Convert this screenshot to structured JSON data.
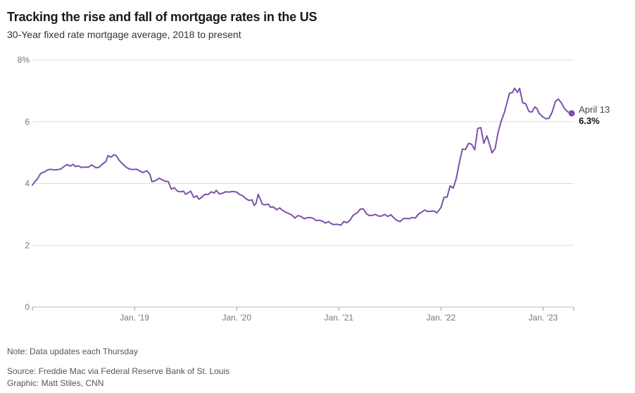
{
  "header": {
    "title": "Tracking the rise and fall of mortgage rates in the US",
    "subtitle": "30-Year fixed rate mortgage average, 2018 to present"
  },
  "footer": {
    "note": "Note: Data updates each Thursday",
    "source": "Source: Freddie Mac via Federal Reserve Bank of St. Louis",
    "credit": "Graphic: Matt Stiles, CNN"
  },
  "chart_data": {
    "type": "line",
    "title": "Tracking the rise and fall of mortgage rates in the US",
    "subtitle": "30-Year fixed rate mortgage average, 2018 to present",
    "xlabel": "",
    "ylabel": "",
    "ylim": [
      0,
      8
    ],
    "xlim": [
      2018.0,
      2023.3
    ],
    "yticks": [
      {
        "value": 0,
        "label": "0"
      },
      {
        "value": 2,
        "label": "2"
      },
      {
        "value": 4,
        "label": "4"
      },
      {
        "value": 6,
        "label": "6"
      },
      {
        "value": 8,
        "label": "8%"
      }
    ],
    "xticks": [
      {
        "value": 2019.0,
        "label": "Jan. '19"
      },
      {
        "value": 2020.0,
        "label": "Jan. '20"
      },
      {
        "value": 2021.0,
        "label": "Jan. '21"
      },
      {
        "value": 2022.0,
        "label": "Jan. '22"
      },
      {
        "value": 2023.0,
        "label": "Jan. '23"
      }
    ],
    "grid": true,
    "line_color": "#7b52ab",
    "end_annotation": {
      "date_label": "April 13",
      "value_label": "6.3%",
      "x": 2023.28,
      "y": 6.27
    },
    "series": [
      {
        "name": "30-Year fixed rate mortgage average",
        "points": [
          [
            2018.0,
            3.95
          ],
          [
            2018.02,
            4.04
          ],
          [
            2018.05,
            4.15
          ],
          [
            2018.08,
            4.32
          ],
          [
            2018.12,
            4.38
          ],
          [
            2018.15,
            4.44
          ],
          [
            2018.18,
            4.46
          ],
          [
            2018.21,
            4.44
          ],
          [
            2018.25,
            4.45
          ],
          [
            2018.28,
            4.47
          ],
          [
            2018.31,
            4.55
          ],
          [
            2018.34,
            4.61
          ],
          [
            2018.37,
            4.56
          ],
          [
            2018.4,
            4.62
          ],
          [
            2018.42,
            4.55
          ],
          [
            2018.45,
            4.57
          ],
          [
            2018.48,
            4.52
          ],
          [
            2018.52,
            4.53
          ],
          [
            2018.55,
            4.53
          ],
          [
            2018.58,
            4.6
          ],
          [
            2018.62,
            4.51
          ],
          [
            2018.65,
            4.52
          ],
          [
            2018.68,
            4.61
          ],
          [
            2018.72,
            4.71
          ],
          [
            2018.74,
            4.9
          ],
          [
            2018.77,
            4.85
          ],
          [
            2018.8,
            4.93
          ],
          [
            2018.82,
            4.9
          ],
          [
            2018.85,
            4.75
          ],
          [
            2018.88,
            4.64
          ],
          [
            2018.91,
            4.55
          ],
          [
            2018.94,
            4.48
          ],
          [
            2018.98,
            4.45
          ],
          [
            2019.02,
            4.46
          ],
          [
            2019.05,
            4.41
          ],
          [
            2019.08,
            4.35
          ],
          [
            2019.12,
            4.41
          ],
          [
            2019.15,
            4.3
          ],
          [
            2019.17,
            4.06
          ],
          [
            2019.2,
            4.08
          ],
          [
            2019.24,
            4.17
          ],
          [
            2019.27,
            4.12
          ],
          [
            2019.3,
            4.07
          ],
          [
            2019.33,
            4.06
          ],
          [
            2019.36,
            3.82
          ],
          [
            2019.39,
            3.86
          ],
          [
            2019.42,
            3.75
          ],
          [
            2019.45,
            3.73
          ],
          [
            2019.48,
            3.75
          ],
          [
            2019.5,
            3.65
          ],
          [
            2019.52,
            3.69
          ],
          [
            2019.55,
            3.75
          ],
          [
            2019.58,
            3.55
          ],
          [
            2019.61,
            3.6
          ],
          [
            2019.63,
            3.49
          ],
          [
            2019.66,
            3.56
          ],
          [
            2019.69,
            3.65
          ],
          [
            2019.72,
            3.64
          ],
          [
            2019.75,
            3.73
          ],
          [
            2019.78,
            3.69
          ],
          [
            2019.8,
            3.78
          ],
          [
            2019.83,
            3.66
          ],
          [
            2019.86,
            3.68
          ],
          [
            2019.89,
            3.73
          ],
          [
            2019.92,
            3.72
          ],
          [
            2019.96,
            3.74
          ],
          [
            2020.0,
            3.72
          ],
          [
            2020.03,
            3.64
          ],
          [
            2020.06,
            3.6
          ],
          [
            2020.09,
            3.51
          ],
          [
            2020.12,
            3.45
          ],
          [
            2020.15,
            3.47
          ],
          [
            2020.17,
            3.29
          ],
          [
            2020.19,
            3.36
          ],
          [
            2020.21,
            3.65
          ],
          [
            2020.23,
            3.5
          ],
          [
            2020.25,
            3.33
          ],
          [
            2020.28,
            3.31
          ],
          [
            2020.31,
            3.33
          ],
          [
            2020.33,
            3.23
          ],
          [
            2020.36,
            3.24
          ],
          [
            2020.39,
            3.15
          ],
          [
            2020.42,
            3.21
          ],
          [
            2020.45,
            3.13
          ],
          [
            2020.48,
            3.07
          ],
          [
            2020.51,
            3.03
          ],
          [
            2020.54,
            2.98
          ],
          [
            2020.57,
            2.88
          ],
          [
            2020.6,
            2.96
          ],
          [
            2020.63,
            2.93
          ],
          [
            2020.66,
            2.86
          ],
          [
            2020.69,
            2.89
          ],
          [
            2020.72,
            2.9
          ],
          [
            2020.75,
            2.87
          ],
          [
            2020.78,
            2.8
          ],
          [
            2020.81,
            2.81
          ],
          [
            2020.84,
            2.78
          ],
          [
            2020.87,
            2.72
          ],
          [
            2020.9,
            2.77
          ],
          [
            2020.92,
            2.71
          ],
          [
            2020.95,
            2.67
          ],
          [
            2020.98,
            2.68
          ],
          [
            2021.02,
            2.65
          ],
          [
            2021.05,
            2.77
          ],
          [
            2021.08,
            2.73
          ],
          [
            2021.11,
            2.81
          ],
          [
            2021.14,
            2.97
          ],
          [
            2021.18,
            3.05
          ],
          [
            2021.21,
            3.17
          ],
          [
            2021.24,
            3.18
          ],
          [
            2021.27,
            3.02
          ],
          [
            2021.3,
            2.96
          ],
          [
            2021.33,
            2.97
          ],
          [
            2021.36,
            3.0
          ],
          [
            2021.39,
            2.94
          ],
          [
            2021.42,
            2.95
          ],
          [
            2021.45,
            3.0
          ],
          [
            2021.48,
            2.93
          ],
          [
            2021.51,
            2.99
          ],
          [
            2021.54,
            2.88
          ],
          [
            2021.57,
            2.8
          ],
          [
            2021.6,
            2.77
          ],
          [
            2021.63,
            2.86
          ],
          [
            2021.66,
            2.87
          ],
          [
            2021.69,
            2.86
          ],
          [
            2021.72,
            2.9
          ],
          [
            2021.75,
            2.88
          ],
          [
            2021.78,
            3.01
          ],
          [
            2021.81,
            3.07
          ],
          [
            2021.84,
            3.14
          ],
          [
            2021.87,
            3.09
          ],
          [
            2021.9,
            3.1
          ],
          [
            2021.93,
            3.11
          ],
          [
            2021.96,
            3.05
          ],
          [
            2022.0,
            3.22
          ],
          [
            2022.03,
            3.55
          ],
          [
            2022.06,
            3.56
          ],
          [
            2022.09,
            3.92
          ],
          [
            2022.12,
            3.85
          ],
          [
            2022.15,
            4.16
          ],
          [
            2022.18,
            4.67
          ],
          [
            2022.21,
            5.11
          ],
          [
            2022.24,
            5.1
          ],
          [
            2022.27,
            5.3
          ],
          [
            2022.3,
            5.27
          ],
          [
            2022.33,
            5.09
          ],
          [
            2022.36,
            5.78
          ],
          [
            2022.39,
            5.81
          ],
          [
            2022.42,
            5.3
          ],
          [
            2022.45,
            5.54
          ],
          [
            2022.48,
            5.22
          ],
          [
            2022.5,
            4.99
          ],
          [
            2022.53,
            5.13
          ],
          [
            2022.56,
            5.66
          ],
          [
            2022.59,
            6.02
          ],
          [
            2022.62,
            6.29
          ],
          [
            2022.65,
            6.66
          ],
          [
            2022.67,
            6.92
          ],
          [
            2022.7,
            6.94
          ],
          [
            2022.72,
            7.08
          ],
          [
            2022.75,
            6.95
          ],
          [
            2022.77,
            7.08
          ],
          [
            2022.8,
            6.61
          ],
          [
            2022.83,
            6.58
          ],
          [
            2022.86,
            6.33
          ],
          [
            2022.89,
            6.31
          ],
          [
            2022.92,
            6.48
          ],
          [
            2022.94,
            6.42
          ],
          [
            2022.96,
            6.27
          ],
          [
            2023.0,
            6.15
          ],
          [
            2023.03,
            6.09
          ],
          [
            2023.06,
            6.12
          ],
          [
            2023.09,
            6.32
          ],
          [
            2023.12,
            6.65
          ],
          [
            2023.15,
            6.73
          ],
          [
            2023.18,
            6.6
          ],
          [
            2023.21,
            6.42
          ],
          [
            2023.24,
            6.32
          ],
          [
            2023.28,
            6.27
          ]
        ]
      }
    ]
  }
}
